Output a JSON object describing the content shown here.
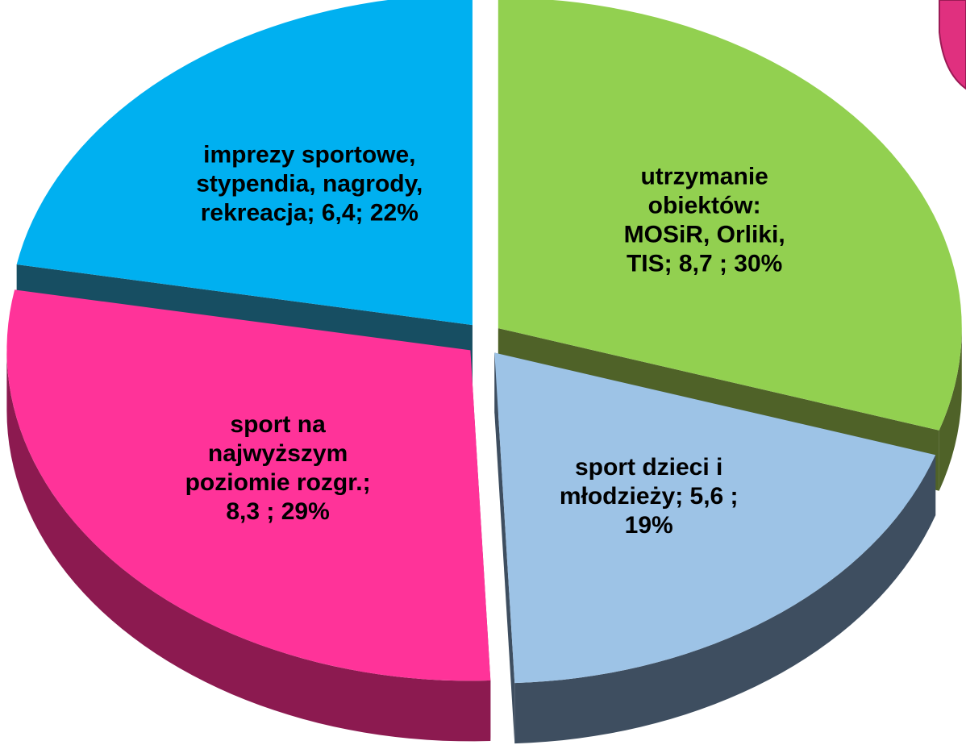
{
  "chart_data": {
    "type": "pie3d",
    "categories": [
      "utrzymanie obiektów: MOSiR, Orliki, TIS",
      "sport dzieci i młodzieży",
      "sport na najwyższym poziomie rozgr.",
      "imprezy sportowe, stypendia, nagrody, rekreacja"
    ],
    "values": [
      8.7,
      5.6,
      8.3,
      6.4
    ],
    "value_labels": [
      [
        "utrzymanie",
        "obiektów:",
        "MOSiR, Orliki,",
        "TIS;  8,7 ; 30%"
      ],
      [
        "sport dzieci i",
        "młodzieży;  5,6 ;",
        "19%"
      ],
      [
        "sport na",
        "najwyższym",
        "poziomie rozgr.;",
        "8,3 ; 29%"
      ],
      [
        "imprezy sportowe,",
        "stypendia, nagrody,",
        "rekreacja; 6,4; 22%"
      ]
    ],
    "colors": [
      "#92d050",
      "#9dc3e6",
      "#ff3399",
      "#00b0f0"
    ],
    "wall_colors": [
      "#4f6228",
      "#3e4e60",
      "#8c1a50",
      "#174e62"
    ]
  }
}
